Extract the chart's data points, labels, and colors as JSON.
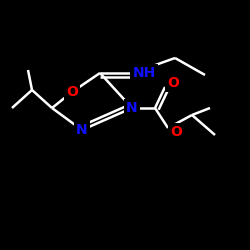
{
  "bg_color": "#000000",
  "line_color": "#ffffff",
  "atom_colors": {
    "N": "#1010ff",
    "O": "#ff0000",
    "C": "#ffffff"
  },
  "lw": 1.8,
  "fontsize": 10
}
